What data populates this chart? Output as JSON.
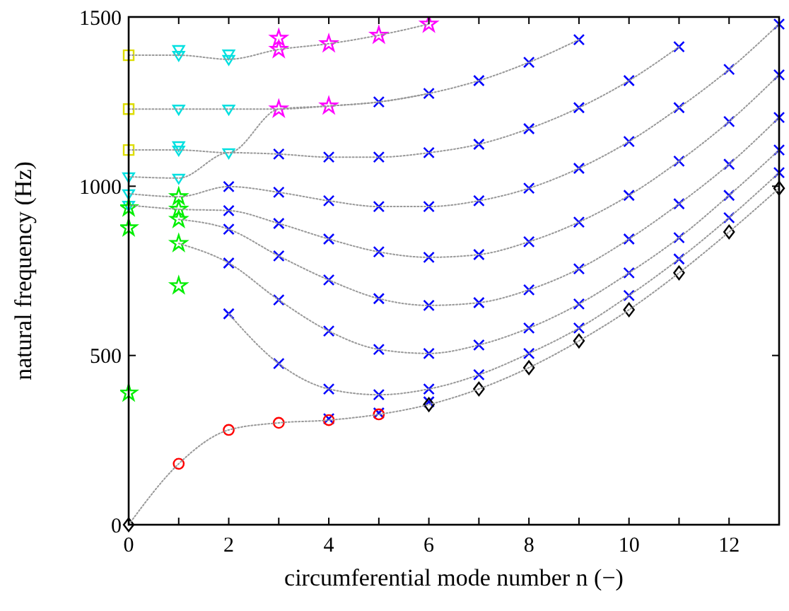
{
  "chart_data": {
    "type": "scatter",
    "xlabel": "circumferential mode number n (−)",
    "ylabel": "natural frequency (Hz)",
    "xlim": [
      0,
      13
    ],
    "ylim": [
      0,
      1500
    ],
    "xticks": [
      0,
      {
        "value": 1,
        "label": null
      },
      2,
      {
        "value": 3,
        "label": null
      },
      4,
      {
        "value": 5,
        "label": null
      },
      6,
      {
        "value": 7,
        "label": null
      },
      8,
      {
        "value": 9,
        "label": null
      },
      10,
      {
        "value": 11,
        "label": null
      },
      12,
      {
        "value": 13,
        "label": null
      }
    ],
    "yticks": [
      0,
      500,
      1000,
      1500
    ],
    "series": [
      {
        "type": "line",
        "color": "#999999",
        "line_style": "dotted",
        "x": [
          0,
          1,
          2,
          3,
          4,
          5,
          6,
          7,
          8,
          9,
          10,
          11,
          12,
          13
        ],
        "values": [
          0,
          180,
          280,
          301,
          309,
          326,
          355,
          401,
          464,
          543,
          635,
          744,
          865,
          994
        ]
      },
      {
        "type": "line",
        "color": "#999999",
        "line_style": "dotted",
        "x": [
          2,
          3,
          4,
          5,
          6,
          7,
          8,
          9,
          10,
          11,
          12,
          13
        ],
        "values": [
          623,
          476,
          401,
          384,
          401,
          443,
          506,
          581,
          677,
          785,
          907,
          1040
        ]
      },
      {
        "type": "line",
        "color": "#999999",
        "line_style": "dotted",
        "x": [
          1,
          2,
          3,
          4,
          5,
          6,
          7,
          8,
          9,
          10,
          11,
          12,
          13
        ],
        "values": [
          831,
          773,
          664,
          572,
          518,
          506,
          531,
          581,
          652,
          744,
          848,
          973,
          1107
        ]
      },
      {
        "type": "line",
        "color": "#999999",
        "line_style": "dotted",
        "x": [
          1,
          2,
          3,
          4,
          5,
          6,
          7,
          8,
          9,
          10,
          11,
          12,
          13
        ],
        "values": [
          902,
          873,
          794,
          723,
          668,
          648,
          656,
          694,
          756,
          844,
          948,
          1065,
          1203
        ]
      },
      {
        "type": "line",
        "color": "#999999",
        "line_style": "dotted",
        "x": [
          0,
          1,
          2,
          3,
          4,
          5,
          6,
          7,
          8,
          9,
          10,
          11,
          12,
          13
        ],
        "values": [
          944,
          932,
          928,
          890,
          844,
          806,
          790,
          798,
          836,
          894,
          973,
          1074,
          1191,
          1329
        ]
      },
      {
        "type": "line",
        "color": "#999999",
        "line_style": "dotted",
        "x": [
          0,
          1,
          2,
          3,
          4,
          5,
          6,
          7,
          8,
          9,
          10,
          11,
          12,
          13
        ],
        "values": [
          978,
          969,
          999,
          982,
          957,
          940,
          940,
          957,
          994,
          1053,
          1132,
          1232,
          1345,
          1479
        ]
      },
      {
        "type": "line",
        "color": "#999999",
        "line_style": "dotted",
        "x": [
          0,
          1,
          2,
          3,
          4,
          5,
          6,
          7,
          8,
          9,
          10,
          11
        ],
        "values": [
          1028,
          1024,
          1099,
          1095,
          1086,
          1086,
          1099,
          1124,
          1170,
          1232,
          1312,
          1412
        ]
      },
      {
        "type": "line",
        "color": "#999999",
        "line_style": "dotted",
        "x": [
          0,
          1,
          2,
          3,
          4,
          5,
          6,
          7,
          8,
          9
        ],
        "values": [
          1107,
          1107,
          1099,
          1228,
          1237,
          1249,
          1274,
          1312,
          1366,
          1433
        ]
      },
      {
        "type": "line",
        "color": "#999999",
        "line_style": "dotted",
        "x": [
          0,
          1,
          2,
          3,
          4,
          5,
          6
        ],
        "values": [
          1228,
          1228,
          1228,
          1228,
          1237,
          1249,
          1274
        ]
      },
      {
        "type": "line",
        "color": "#999999",
        "line_style": "dotted",
        "x": [
          0,
          1,
          2,
          3,
          4,
          5,
          6
        ],
        "values": [
          1387,
          1387,
          1375,
          1404,
          1421,
          1446,
          1479
        ]
      },
      {
        "color": "#dddd00",
        "marker": "square",
        "x": [
          0,
          0,
          0
        ],
        "values": [
          1387,
          1228,
          1107
        ]
      },
      {
        "color": "#00e0e0",
        "marker": "triangle",
        "x": [
          0,
          0,
          0,
          1,
          1,
          1,
          1,
          1,
          1,
          2,
          2,
          2,
          2
        ],
        "values": [
          1028,
          978,
          944,
          1404,
          1387,
          1228,
          1120,
          1107,
          1024,
          1391,
          1375,
          1228,
          1099
        ]
      },
      {
        "color": "#00ee00",
        "marker": "star",
        "x": [
          0,
          0,
          0,
          1,
          1,
          1,
          1,
          1
        ],
        "values": [
          936,
          877,
          389,
          969,
          932,
          902,
          831,
          706
        ]
      },
      {
        "color": "#ff00ff",
        "marker": "star",
        "x": [
          3,
          3,
          3,
          4,
          4,
          5,
          6
        ],
        "values": [
          1437,
          1404,
          1228,
          1421,
          1237,
          1446,
          1479
        ]
      },
      {
        "color": "#0000ff",
        "marker": "cross",
        "x": [
          2,
          2,
          2,
          2,
          2,
          3,
          3,
          3,
          3,
          3,
          3,
          4,
          4,
          4,
          4,
          4,
          4,
          4,
          5,
          5,
          5,
          5,
          5,
          5,
          5,
          5,
          6,
          6,
          6,
          6,
          6,
          6,
          6,
          6,
          7,
          7,
          7,
          7,
          7,
          7,
          7,
          8,
          8,
          8,
          8,
          8,
          8,
          8,
          9,
          9,
          9,
          9,
          9,
          9,
          9,
          10,
          10,
          10,
          10,
          10,
          10,
          11,
          11,
          11,
          11,
          11,
          11,
          12,
          12,
          12,
          12,
          12,
          13,
          13,
          13,
          13,
          13
        ],
        "values": [
          999,
          928,
          873,
          773,
          623,
          1095,
          982,
          890,
          794,
          664,
          476,
          1086,
          957,
          844,
          723,
          572,
          401,
          313,
          1249,
          1086,
          940,
          806,
          668,
          518,
          384,
          330,
          1274,
          1099,
          940,
          790,
          648,
          506,
          401,
          363,
          1312,
          1124,
          957,
          798,
          656,
          531,
          443,
          1366,
          1170,
          994,
          836,
          694,
          581,
          506,
          1433,
          1232,
          1053,
          894,
          756,
          652,
          581,
          1312,
          1132,
          973,
          844,
          744,
          677,
          1412,
          1232,
          1074,
          948,
          848,
          785,
          1345,
          1191,
          1065,
          973,
          907,
          1479,
          1329,
          1203,
          1107,
          1040
        ]
      },
      {
        "color": "#ff0000",
        "marker": "circle",
        "x": [
          1,
          2,
          3,
          4,
          5
        ],
        "values": [
          180,
          280,
          301,
          309,
          326
        ]
      },
      {
        "color": "#000000",
        "marker": "diamond",
        "x": [
          0,
          6,
          7,
          8,
          9,
          10,
          11,
          12,
          13
        ],
        "values": [
          0,
          355,
          401,
          464,
          543,
          635,
          744,
          865,
          994
        ]
      }
    ]
  }
}
